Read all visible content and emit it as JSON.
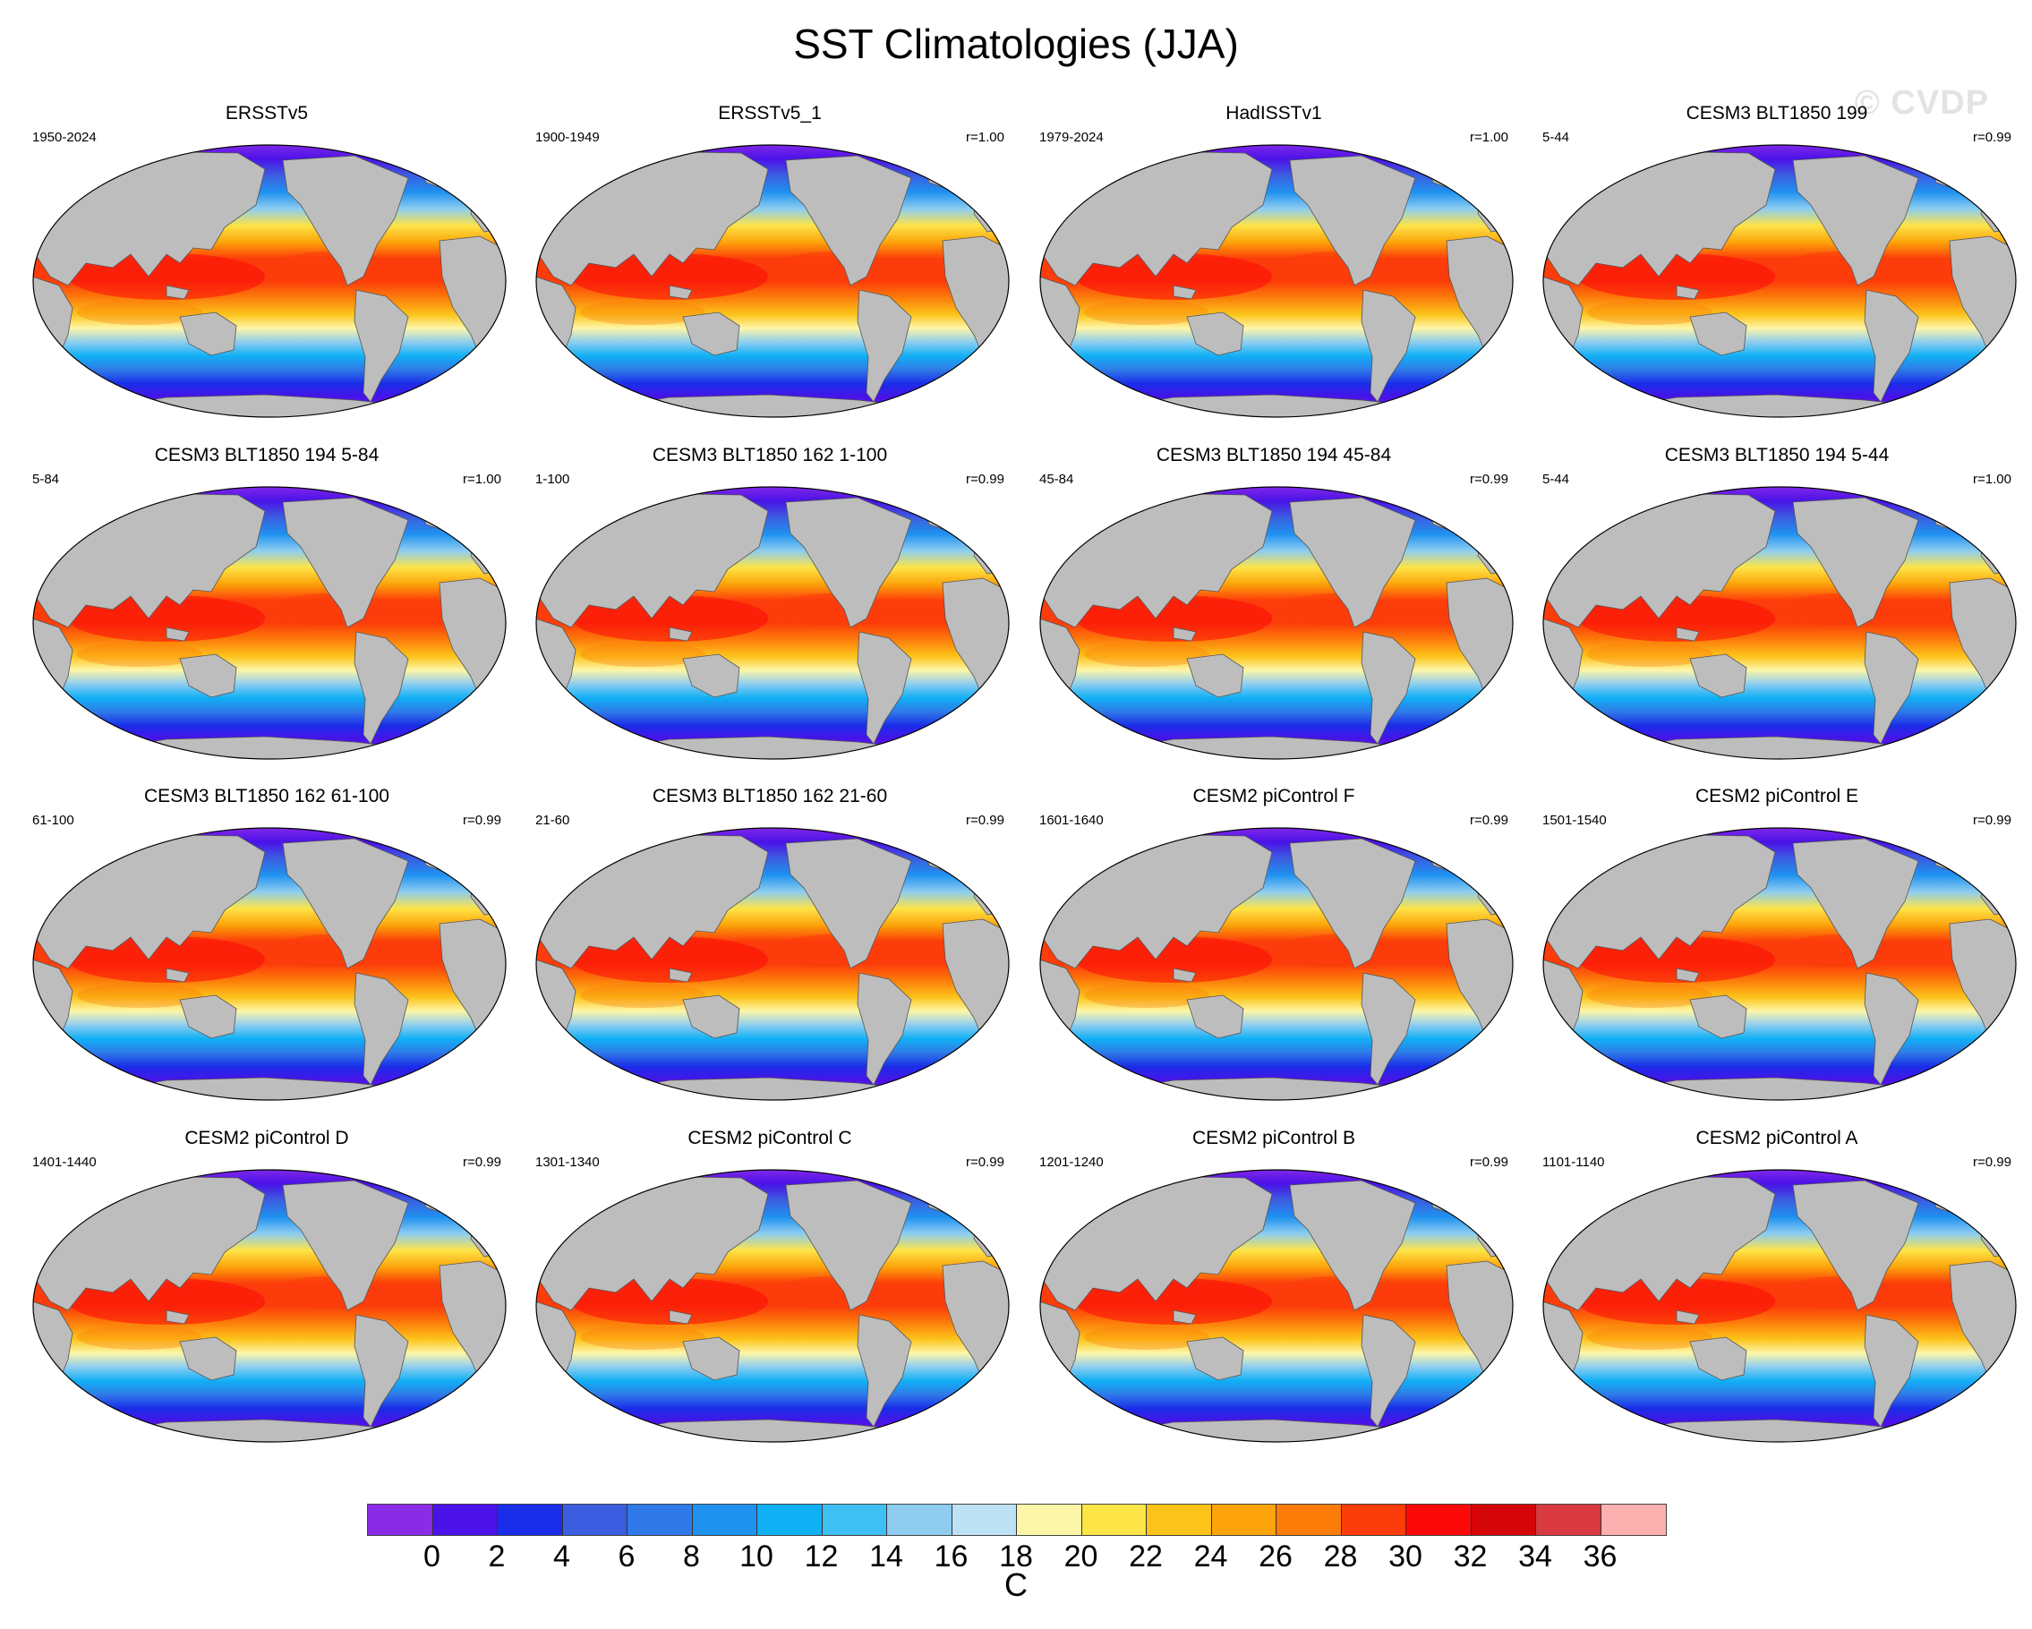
{
  "title": "SST Climatologies (JJA)",
  "watermark": "© CVDP",
  "panels": [
    {
      "title": "ERSSTv5",
      "years": "1950-2024",
      "r": ""
    },
    {
      "title": "ERSSTv5_1",
      "years": "1900-1949",
      "r": "r=1.00"
    },
    {
      "title": "HadISSTv1",
      "years": "1979-2024",
      "r": "r=1.00"
    },
    {
      "title": "CESM3 BLT1850 199",
      "years": "5-44",
      "r": "r=0.99"
    },
    {
      "title": "CESM3 BLT1850 194 5-84",
      "years": "5-84",
      "r": "r=1.00"
    },
    {
      "title": "CESM3 BLT1850 162 1-100",
      "years": "1-100",
      "r": "r=0.99"
    },
    {
      "title": "CESM3 BLT1850 194 45-84",
      "years": "45-84",
      "r": "r=0.99"
    },
    {
      "title": "CESM3 BLT1850 194 5-44",
      "years": "5-44",
      "r": "r=1.00"
    },
    {
      "title": "CESM3 BLT1850 162 61-100",
      "years": "61-100",
      "r": "r=0.99"
    },
    {
      "title": "CESM3 BLT1850 162 21-60",
      "years": "21-60",
      "r": "r=0.99"
    },
    {
      "title": "CESM2 piControl F",
      "years": "1601-1640",
      "r": "r=0.99"
    },
    {
      "title": "CESM2 piControl E",
      "years": "1501-1540",
      "r": "r=0.99"
    },
    {
      "title": "CESM2 piControl D",
      "years": "1401-1440",
      "r": "r=0.99"
    },
    {
      "title": "CESM2 piControl C",
      "years": "1301-1340",
      "r": "r=0.99"
    },
    {
      "title": "CESM2 piControl B",
      "years": "1201-1240",
      "r": "r=0.99"
    },
    {
      "title": "CESM2 piControl A",
      "years": "1101-1140",
      "r": "r=0.99"
    }
  ],
  "colorbar": {
    "colors": [
      "#8a2be8",
      "#4a12e8",
      "#1a2de8",
      "#3b5ee0",
      "#2f7ae8",
      "#1f92f0",
      "#10b0f5",
      "#3ec0f5",
      "#8ecdf0",
      "#bde2f5",
      "#fdf6a8",
      "#fde447",
      "#fcc41a",
      "#fca40a",
      "#fc7c0a",
      "#fc3c0a",
      "#fc0a0a",
      "#d4060a",
      "#d83a40",
      "#fcb0b0"
    ],
    "ticks": [
      "0",
      "2",
      "4",
      "6",
      "8",
      "10",
      "12",
      "14",
      "16",
      "18",
      "20",
      "22",
      "24",
      "26",
      "28",
      "30",
      "32",
      "34",
      "36"
    ],
    "unit": "C"
  },
  "colors": {
    "land": "#bdbdbd",
    "background": "#ffffff"
  }
}
